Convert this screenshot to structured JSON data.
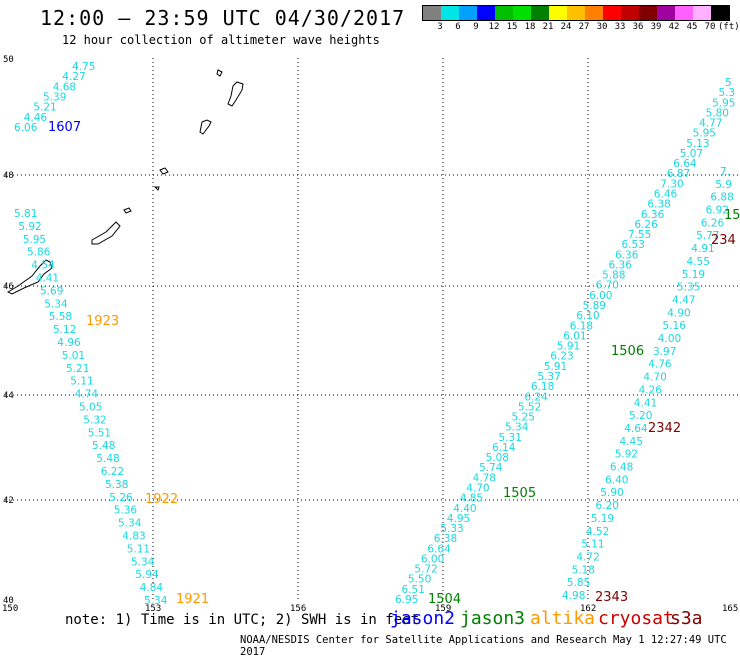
{
  "title": "12:00 — 23:59 UTC 04/30/2017",
  "subtitle": "12 hour collection of altimeter wave heights",
  "credit": "NOAA/NESDIS Center for Satellite Applications and Research   May  1 12:27:49 UTC 2017",
  "note": "note:  1) Time is in UTC; 2) SWH is in feet",
  "legend": {
    "colors": [
      "#808080",
      "#00e5e5",
      "#00a0ff",
      "#0000ff",
      "#00c000",
      "#00e000",
      "#008000",
      "#ffff00",
      "#ffc000",
      "#ff8000",
      "#ff0000",
      "#c00000",
      "#800000",
      "#a000a0",
      "#ff60ff",
      "#ffb0ff",
      "#000000"
    ],
    "labels": [
      "3",
      "6",
      "9",
      "12",
      "15",
      "18",
      "21",
      "24",
      "27",
      "30",
      "33",
      "36",
      "39",
      "42",
      "45",
      "70"
    ],
    "unit": "(ft)"
  },
  "satellites": [
    {
      "name": "jason2",
      "color": "#0000ff"
    },
    {
      "name": "jason3",
      "color": "#008000"
    },
    {
      "name": "altika",
      "color": "#ff9900"
    },
    {
      "name": "cryosat",
      "color": "#cc0000"
    },
    {
      "name": "s3a",
      "color": "#800000"
    }
  ],
  "axes": {
    "lon_ticks": [
      "150",
      "153",
      "156",
      "159",
      "162",
      "165"
    ],
    "lat_ticks": [
      "50",
      "48",
      "46",
      "44",
      "42",
      "40"
    ]
  },
  "times": [
    {
      "text": "1607",
      "color": "#0000ff"
    },
    {
      "text": "1923",
      "color": "#ff9900"
    },
    {
      "text": "1922",
      "color": "#ff9900"
    },
    {
      "text": "1921",
      "color": "#ff9900"
    },
    {
      "text": "1506",
      "color": "#008000"
    },
    {
      "text": "1505",
      "color": "#008000"
    },
    {
      "text": "1504",
      "color": "#008000"
    },
    {
      "text": "15",
      "color": "#008000"
    },
    {
      "text": "2342",
      "color": "#800000"
    },
    {
      "text": "2343",
      "color": "#800000"
    },
    {
      "text": "234",
      "color": "#800000"
    }
  ],
  "tracks": {
    "a": [
      "4.75",
      "4.27",
      "4.68",
      "5.39",
      "5.21",
      "4.46",
      "6.06"
    ],
    "b": [
      "5.81",
      "5.92",
      "5.95",
      "5.86",
      "4.54",
      "4.41",
      "5.69",
      "5.34",
      "5.58",
      "5.12",
      "4.96",
      "5.01",
      "5.21",
      "5.11",
      "4.74",
      "5.05",
      "5.32",
      "5.51",
      "5.48",
      "5.48",
      "6.22",
      "5.38",
      "5.26",
      "5.36",
      "5.34",
      "4.83",
      "5.11",
      "5.34",
      "5.94",
      "4.84",
      "5.34"
    ],
    "c": [
      "6.95",
      "6.51",
      "5.50",
      "5.72",
      "6.00",
      "6.64",
      "6.38",
      "5.33",
      "4.95",
      "4.40",
      "4.85",
      "4.70",
      "4.78",
      "5.74",
      "5.08",
      "6.14",
      "5.31",
      "5.34",
      "5.25",
      "5.52",
      "6.24",
      "6.18",
      "5.37",
      "5.91",
      "6.23",
      "5.91",
      "6.01",
      "6.18",
      "6.10",
      "5.89",
      "6.00",
      "6.70",
      "5.88",
      "6.36",
      "6.36",
      "6.53",
      "7.55",
      "6.26",
      "6.36",
      "6.38",
      "6.46",
      "7.30",
      "6.87",
      "6.64",
      "5.07",
      "5.13",
      "5.95",
      "4.77",
      "5.80",
      "5.95",
      "5.3",
      "5"
    ],
    "d": [
      "4.98",
      "5.85",
      "5.18",
      "4.72",
      "5.11",
      "4.52",
      "5.19",
      "6.20",
      "5.90",
      "6.40",
      "6.48",
      "5.92",
      "4.45",
      "4.64",
      "5.20",
      "4.41",
      "4.26",
      "4.70",
      "4.76",
      "3.97",
      "4.00",
      "5.16",
      "4.90",
      "4.47",
      "5.35",
      "5.19",
      "4.55",
      "4.91",
      "5.77",
      "6.26",
      "6.92",
      "6.88",
      "5.9",
      "7."
    ]
  }
}
